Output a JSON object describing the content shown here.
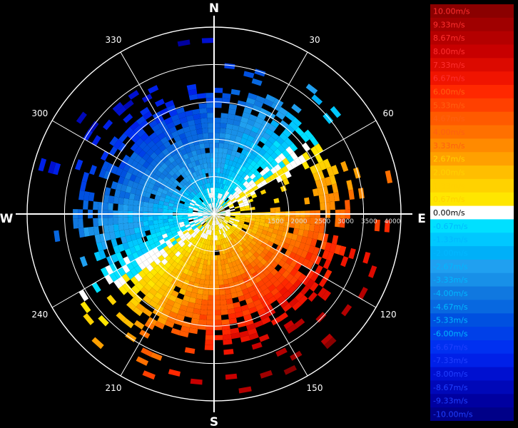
{
  "chart_data": {
    "type": "heatmap",
    "subtype": "polar-radial-velocity-ppi",
    "cardinal_labels": {
      "north": "N",
      "south": "S",
      "east": "E",
      "west": "W"
    },
    "azimuth_labels": [
      "30",
      "60",
      "120",
      "150",
      "210",
      "240",
      "300",
      "330"
    ],
    "azimuth_values": [
      30,
      60,
      120,
      150,
      210,
      240,
      300,
      330
    ],
    "range_labels": [
      "1500",
      "2000",
      "2500",
      "3000",
      "3500",
      "4000"
    ],
    "range_values": [
      1500,
      2000,
      2500,
      3000,
      3500,
      4000
    ],
    "range_max": 4000,
    "grid": true,
    "colorbar": {
      "position": "right",
      "unit": "m/s",
      "labels": [
        "10.00m/s",
        "9.33m/s",
        "8.67m/s",
        "8.00m/s",
        "7.33m/s",
        "6.67m/s",
        "6.00m/s",
        "5.33m/s",
        "4.67m/s",
        "4.00m/s",
        "3.33m/s",
        "2.67m/s",
        "2.00m/s",
        "1.33m/s",
        "0.67m/s",
        "0.00m/s",
        "-0.67m/s",
        "-1.33m/s",
        "-2.00m/s",
        "-2.67m/s",
        "-3.33m/s",
        "-4.00m/s",
        "-4.67m/s",
        "-5.33m/s",
        "-6.00m/s",
        "-6.67m/s",
        "-7.33m/s",
        "-8.00m/s",
        "-8.67m/s",
        "-9.33m/s",
        "-10.00m/s"
      ],
      "values": [
        10.0,
        9.33,
        8.67,
        8.0,
        7.33,
        6.67,
        6.0,
        5.33,
        4.67,
        4.0,
        3.33,
        2.67,
        2.0,
        1.33,
        0.67,
        0.0,
        -0.67,
        -1.33,
        -2.0,
        -2.67,
        -3.33,
        -4.0,
        -4.67,
        -5.33,
        -6.0,
        -6.67,
        -7.33,
        -8.0,
        -8.67,
        -9.33,
        -10.0
      ],
      "colors": [
        "#8b0000",
        "#a00000",
        "#b40000",
        "#c80000",
        "#dc0a00",
        "#f01400",
        "#ff2800",
        "#ff4000",
        "#ff5a00",
        "#ff7000",
        "#ff8a00",
        "#ffa000",
        "#ffbe00",
        "#ffd200",
        "#ffe600",
        "#ffffff",
        "#00e0ff",
        "#00c8ff",
        "#00b0f8",
        "#20a0f0",
        "#1890e8",
        "#1078e0",
        "#0868e0",
        "#0050e0",
        "#0040e8",
        "#0030f0",
        "#0020e8",
        "#0010d0",
        "#0008b8",
        "#0000a0",
        "#000088"
      ]
    }
  }
}
